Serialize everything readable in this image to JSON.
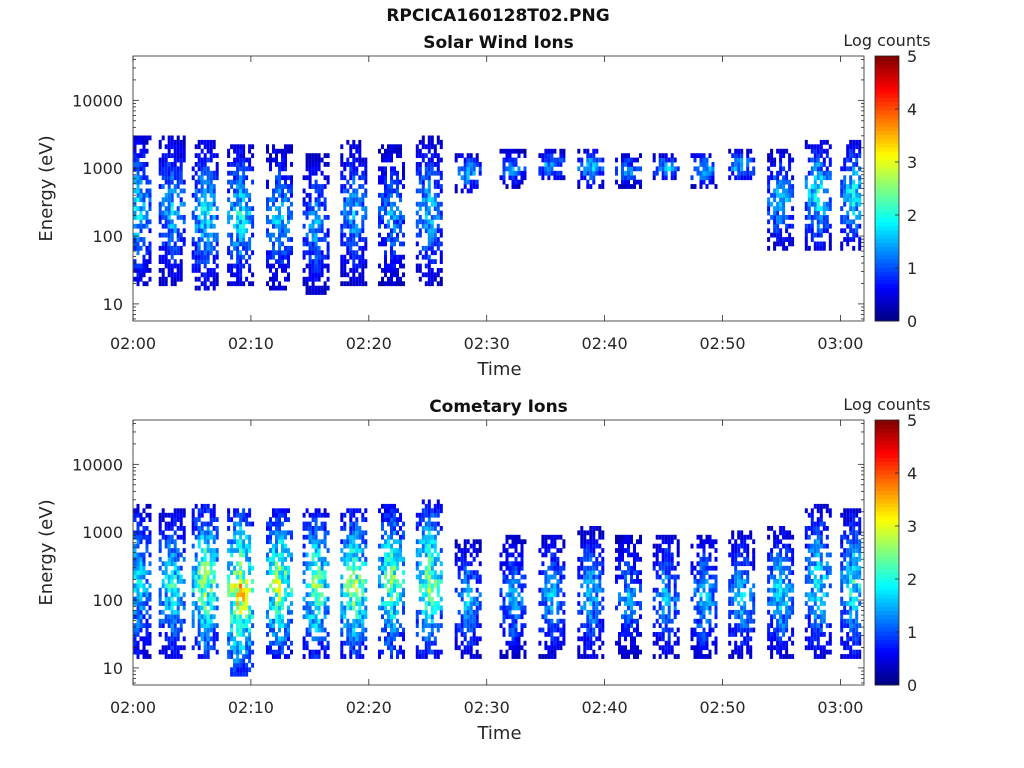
{
  "figure": {
    "title": "RPCICA160128T02.PNG"
  },
  "chart_data": [
    {
      "type": "heatmap",
      "title": "Solar Wind Ions",
      "xlabel": "Time",
      "ylabel": "Energy (eV)",
      "x_range": [
        "02:00",
        "03:02"
      ],
      "x_ticks": [
        "02:00",
        "02:10",
        "02:20",
        "02:30",
        "02:40",
        "02:50",
        "03:00"
      ],
      "y_scale": "log",
      "y_range": [
        5.6,
        45000
      ],
      "y_ticks": [
        "10",
        "100",
        "1000",
        "10000"
      ],
      "colorbar": {
        "label": "Log counts",
        "range": [
          0,
          5
        ],
        "ticks": [
          "0",
          "1",
          "2",
          "3",
          "4",
          "5"
        ],
        "colormap": "jet"
      },
      "sweep_period_min": 3.2,
      "bursts": [
        {
          "t": 0.3,
          "lo": 18,
          "hi": 3000,
          "peak": 2.0
        },
        {
          "t": 3.2,
          "lo": 18,
          "hi": 2800,
          "peak": 1.8
        },
        {
          "t": 6.0,
          "lo": 15,
          "hi": 2500,
          "peak": 2.0
        },
        {
          "t": 9.0,
          "lo": 18,
          "hi": 2000,
          "peak": 2.1
        },
        {
          "t": 12.3,
          "lo": 15,
          "hi": 2000,
          "peak": 1.8
        },
        {
          "t": 15.4,
          "lo": 13,
          "hi": 1500,
          "peak": 1.6
        },
        {
          "t": 18.6,
          "lo": 18,
          "hi": 2500,
          "peak": 1.7
        },
        {
          "t": 21.8,
          "lo": 18,
          "hi": 2000,
          "peak": 1.6
        },
        {
          "t": 25.0,
          "lo": 18,
          "hi": 2800,
          "peak": 1.8
        },
        {
          "t": 28.3,
          "lo": 400,
          "hi": 1600,
          "peak": 1.8
        },
        {
          "t": 32.1,
          "lo": 500,
          "hi": 1700,
          "peak": 1.7
        },
        {
          "t": 35.4,
          "lo": 600,
          "hi": 1700,
          "peak": 1.8
        },
        {
          "t": 38.7,
          "lo": 500,
          "hi": 1800,
          "peak": 1.9
        },
        {
          "t": 41.9,
          "lo": 500,
          "hi": 1500,
          "peak": 1.6
        },
        {
          "t": 45.1,
          "lo": 600,
          "hi": 1500,
          "peak": 1.8
        },
        {
          "t": 48.3,
          "lo": 500,
          "hi": 1600,
          "peak": 1.9
        },
        {
          "t": 51.5,
          "lo": 600,
          "hi": 1700,
          "peak": 1.9
        },
        {
          "t": 54.8,
          "lo": 60,
          "hi": 1700,
          "peak": 1.8
        },
        {
          "t": 58.0,
          "lo": 60,
          "hi": 2500,
          "peak": 2.2
        },
        {
          "t": 61.0,
          "lo": 60,
          "hi": 2500,
          "peak": 2.1
        }
      ]
    },
    {
      "type": "heatmap",
      "title": "Cometary Ions",
      "xlabel": "Time",
      "ylabel": "Energy (eV)",
      "x_range": [
        "02:00",
        "03:02"
      ],
      "x_ticks": [
        "02:00",
        "02:10",
        "02:20",
        "02:30",
        "02:40",
        "02:50",
        "03:00"
      ],
      "y_scale": "log",
      "y_range": [
        5.6,
        45000
      ],
      "y_ticks": [
        "10",
        "100",
        "1000",
        "10000"
      ],
      "colorbar": {
        "label": "Log counts",
        "range": [
          0,
          5
        ],
        "ticks": [
          "0",
          "1",
          "2",
          "3",
          "4",
          "5"
        ],
        "colormap": "jet"
      },
      "sweep_period_min": 3.2,
      "bursts": [
        {
          "t": 0.3,
          "lo": 12,
          "hi": 2500,
          "peak": 2.0
        },
        {
          "t": 3.2,
          "lo": 12,
          "hi": 2000,
          "peak": 2.2
        },
        {
          "t": 6.0,
          "lo": 12,
          "hi": 2500,
          "peak": 3.0
        },
        {
          "t": 9.0,
          "lo": 7,
          "hi": 2000,
          "peak": 3.6
        },
        {
          "t": 12.3,
          "lo": 12,
          "hi": 2000,
          "peak": 3.1
        },
        {
          "t": 15.4,
          "lo": 12,
          "hi": 2000,
          "peak": 2.8
        },
        {
          "t": 18.6,
          "lo": 12,
          "hi": 2000,
          "peak": 3.0
        },
        {
          "t": 21.8,
          "lo": 12,
          "hi": 2500,
          "peak": 2.8
        },
        {
          "t": 25.0,
          "lo": 12,
          "hi": 2800,
          "peak": 2.9
        },
        {
          "t": 28.3,
          "lo": 12,
          "hi": 700,
          "peak": 1.8
        },
        {
          "t": 32.1,
          "lo": 12,
          "hi": 800,
          "peak": 1.7
        },
        {
          "t": 35.4,
          "lo": 12,
          "hi": 900,
          "peak": 1.7
        },
        {
          "t": 38.7,
          "lo": 12,
          "hi": 1100,
          "peak": 1.8
        },
        {
          "t": 41.9,
          "lo": 12,
          "hi": 900,
          "peak": 1.6
        },
        {
          "t": 45.1,
          "lo": 12,
          "hi": 900,
          "peak": 1.7
        },
        {
          "t": 48.3,
          "lo": 12,
          "hi": 900,
          "peak": 1.8
        },
        {
          "t": 51.5,
          "lo": 12,
          "hi": 1000,
          "peak": 1.8
        },
        {
          "t": 54.8,
          "lo": 12,
          "hi": 1200,
          "peak": 2.0
        },
        {
          "t": 58.0,
          "lo": 12,
          "hi": 2500,
          "peak": 2.1
        },
        {
          "t": 61.0,
          "lo": 12,
          "hi": 2000,
          "peak": 2.2
        }
      ]
    }
  ]
}
